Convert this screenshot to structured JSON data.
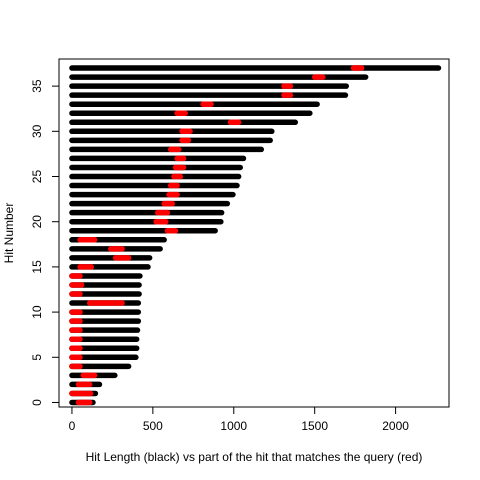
{
  "chart_data": {
    "type": "bar",
    "title": "",
    "xlabel": "Hit Length (black) vs part of the hit that matches the query (red)",
    "ylabel": "Hit Number",
    "xlim": [
      -80,
      2330
    ],
    "ylim": [
      -0.5,
      38
    ],
    "x_ticks": [
      0,
      500,
      1000,
      1500,
      2000
    ],
    "y_ticks": [
      0,
      5,
      10,
      15,
      20,
      25,
      30,
      35
    ],
    "grid": false,
    "colors": {
      "hit": "#000000",
      "match": "#ff0000"
    },
    "series": [
      {
        "name": "Hit Length (black)",
        "segments": [
          {
            "hit": 0,
            "start": 0,
            "end": 130
          },
          {
            "hit": 1,
            "start": 0,
            "end": 145
          },
          {
            "hit": 2,
            "start": 0,
            "end": 170
          },
          {
            "hit": 3,
            "start": 0,
            "end": 265
          },
          {
            "hit": 4,
            "start": 0,
            "end": 350
          },
          {
            "hit": 5,
            "start": 0,
            "end": 395
          },
          {
            "hit": 6,
            "start": 0,
            "end": 400
          },
          {
            "hit": 7,
            "start": 0,
            "end": 400
          },
          {
            "hit": 8,
            "start": 0,
            "end": 405
          },
          {
            "hit": 9,
            "start": 0,
            "end": 410
          },
          {
            "hit": 10,
            "start": 0,
            "end": 410
          },
          {
            "hit": 11,
            "start": 0,
            "end": 410
          },
          {
            "hit": 12,
            "start": 0,
            "end": 415
          },
          {
            "hit": 13,
            "start": 0,
            "end": 415
          },
          {
            "hit": 14,
            "start": 0,
            "end": 420
          },
          {
            "hit": 15,
            "start": 0,
            "end": 470
          },
          {
            "hit": 16,
            "start": 0,
            "end": 480
          },
          {
            "hit": 17,
            "start": 0,
            "end": 545
          },
          {
            "hit": 18,
            "start": 0,
            "end": 570
          },
          {
            "hit": 19,
            "start": 0,
            "end": 885
          },
          {
            "hit": 20,
            "start": 0,
            "end": 920
          },
          {
            "hit": 21,
            "start": 0,
            "end": 925
          },
          {
            "hit": 22,
            "start": 0,
            "end": 960
          },
          {
            "hit": 23,
            "start": 0,
            "end": 995
          },
          {
            "hit": 24,
            "start": 0,
            "end": 1020
          },
          {
            "hit": 25,
            "start": 0,
            "end": 1030
          },
          {
            "hit": 26,
            "start": 0,
            "end": 1040
          },
          {
            "hit": 27,
            "start": 0,
            "end": 1060
          },
          {
            "hit": 28,
            "start": 0,
            "end": 1170
          },
          {
            "hit": 29,
            "start": 0,
            "end": 1225
          },
          {
            "hit": 30,
            "start": 0,
            "end": 1235
          },
          {
            "hit": 31,
            "start": 0,
            "end": 1380
          },
          {
            "hit": 32,
            "start": 0,
            "end": 1470
          },
          {
            "hit": 33,
            "start": 0,
            "end": 1515
          },
          {
            "hit": 34,
            "start": 0,
            "end": 1690
          },
          {
            "hit": 35,
            "start": 0,
            "end": 1695
          },
          {
            "hit": 36,
            "start": 0,
            "end": 1815
          },
          {
            "hit": 37,
            "start": 0,
            "end": 2265
          }
        ]
      },
      {
        "name": "part of the hit that matches the query (red)",
        "segments": [
          {
            "hit": 0,
            "start": 40,
            "end": 110
          },
          {
            "hit": 1,
            "start": 0,
            "end": 115
          },
          {
            "hit": 2,
            "start": 40,
            "end": 110
          },
          {
            "hit": 3,
            "start": 70,
            "end": 140
          },
          {
            "hit": 4,
            "start": 0,
            "end": 50
          },
          {
            "hit": 5,
            "start": 0,
            "end": 50
          },
          {
            "hit": 6,
            "start": 0,
            "end": 50
          },
          {
            "hit": 7,
            "start": 0,
            "end": 50
          },
          {
            "hit": 8,
            "start": 0,
            "end": 50
          },
          {
            "hit": 9,
            "start": 0,
            "end": 50
          },
          {
            "hit": 10,
            "start": 0,
            "end": 50
          },
          {
            "hit": 11,
            "start": 110,
            "end": 310
          },
          {
            "hit": 12,
            "start": 0,
            "end": 50
          },
          {
            "hit": 13,
            "start": 0,
            "end": 60
          },
          {
            "hit": 14,
            "start": 0,
            "end": 50
          },
          {
            "hit": 15,
            "start": 50,
            "end": 120
          },
          {
            "hit": 16,
            "start": 270,
            "end": 350
          },
          {
            "hit": 17,
            "start": 240,
            "end": 310
          },
          {
            "hit": 18,
            "start": 50,
            "end": 140
          },
          {
            "hit": 19,
            "start": 590,
            "end": 640
          },
          {
            "hit": 20,
            "start": 520,
            "end": 580
          },
          {
            "hit": 21,
            "start": 530,
            "end": 590
          },
          {
            "hit": 22,
            "start": 570,
            "end": 620
          },
          {
            "hit": 23,
            "start": 600,
            "end": 650
          },
          {
            "hit": 24,
            "start": 610,
            "end": 650
          },
          {
            "hit": 25,
            "start": 630,
            "end": 670
          },
          {
            "hit": 26,
            "start": 640,
            "end": 690
          },
          {
            "hit": 27,
            "start": 650,
            "end": 690
          },
          {
            "hit": 28,
            "start": 610,
            "end": 660
          },
          {
            "hit": 29,
            "start": 680,
            "end": 720
          },
          {
            "hit": 30,
            "start": 680,
            "end": 730
          },
          {
            "hit": 31,
            "start": 980,
            "end": 1030
          },
          {
            "hit": 32,
            "start": 650,
            "end": 700
          },
          {
            "hit": 33,
            "start": 810,
            "end": 860
          },
          {
            "hit": 34,
            "start": 1310,
            "end": 1350
          },
          {
            "hit": 35,
            "start": 1310,
            "end": 1350
          },
          {
            "hit": 36,
            "start": 1500,
            "end": 1550
          },
          {
            "hit": 37,
            "start": 1740,
            "end": 1790
          }
        ]
      }
    ]
  }
}
